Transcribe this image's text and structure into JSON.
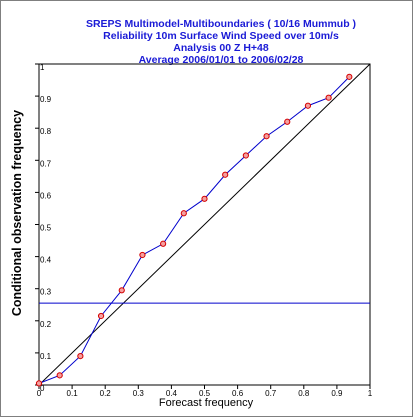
{
  "chart_data": {
    "type": "line",
    "title_lines": [
      "SREPS Multimodel-Multiboundaries   ( 10/16 Mummub )",
      "Reliability  10m Surface Wind Speed over 10m/s",
      "Analysis 00 Z  H+48",
      "Average 2006/01/01 to 2006/02/28"
    ],
    "xlabel": "Forecast frequency",
    "ylabel": "Conditional observation frequency",
    "xlim": [
      0,
      1
    ],
    "ylim": [
      0,
      1
    ],
    "x_ticks": [
      "0",
      "0.1",
      "0.2",
      "0.3",
      "0.4",
      "0.5",
      "0.6",
      "0.7",
      "0.8",
      "0.9",
      "1"
    ],
    "y_ticks": [
      "0",
      "0.1",
      "0.2",
      "0.3",
      "0.4",
      "0.5",
      "0.6",
      "0.7",
      "0.8",
      "0.9",
      "1"
    ],
    "grid": false,
    "series": [
      {
        "x": [
          0.0,
          0.0625,
          0.125,
          0.1875,
          0.25,
          0.3125,
          0.375,
          0.4375,
          0.5,
          0.5625,
          0.625,
          0.6875,
          0.75,
          0.8125,
          0.875,
          0.9375
        ],
        "y": [
          0.005,
          0.03,
          0.09,
          0.215,
          0.295,
          0.405,
          0.44,
          0.535,
          0.58,
          0.655,
          0.715,
          0.775,
          0.82,
          0.87,
          0.895,
          0.96
        ],
        "color": "#0000cc",
        "marker_color": "#d40000"
      }
    ],
    "reference_lines": [
      {
        "kind": "diagonal",
        "from": [
          0,
          0
        ],
        "to": [
          1,
          1
        ],
        "color": "#000000"
      },
      {
        "kind": "horizontal",
        "y": 0.255,
        "color": "#0000cc"
      }
    ]
  }
}
